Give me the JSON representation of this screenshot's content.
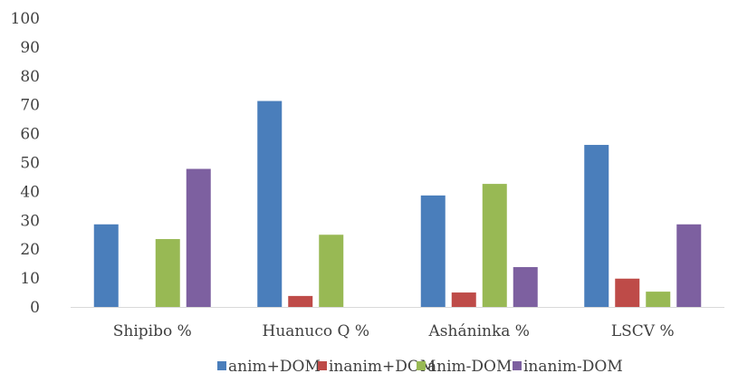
{
  "chart_data": {
    "type": "bar",
    "title": "",
    "xlabel": "",
    "ylabel": "",
    "categories": [
      "Shipibo %",
      "Huanuco Q %",
      "Asháninka %",
      "LSCV %"
    ],
    "series": [
      {
        "name": "anim+DOM",
        "color": "#4a7ebb",
        "values": [
          28.6,
          71.3,
          38.6,
          56.1
        ]
      },
      {
        "name": "inanim+DOM",
        "color": "#be4b48",
        "values": [
          0,
          3.8,
          5.0,
          9.8
        ]
      },
      {
        "name": "anim-DOM",
        "color": "#98b954",
        "values": [
          23.5,
          25.0,
          42.6,
          5.3
        ]
      },
      {
        "name": "inanim-DOM",
        "color": "#7d60a0",
        "values": [
          47.8,
          0,
          13.8,
          28.6
        ]
      }
    ],
    "ylim": [
      0,
      100
    ],
    "yticks": [
      0,
      10,
      20,
      30,
      40,
      50,
      60,
      70,
      80,
      90,
      100
    ],
    "grid": false,
    "legend": "bottom"
  }
}
